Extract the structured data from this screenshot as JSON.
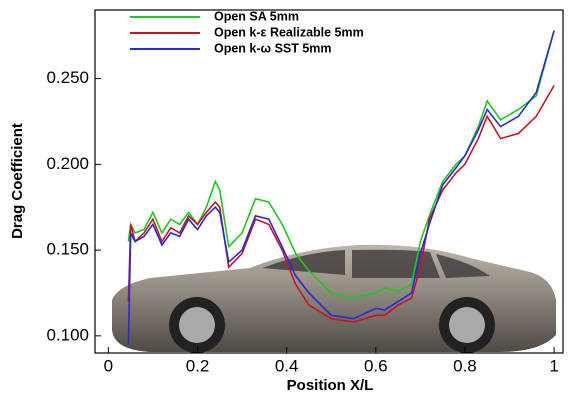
{
  "chart_data": {
    "type": "line",
    "xlabel": "Position X/L",
    "ylabel": "Drag Coefficient",
    "xlim": [
      -0.03,
      1.02
    ],
    "ylim": [
      0.09,
      0.29
    ],
    "xticks": [
      0,
      0.2,
      0.4,
      0.6,
      0.8,
      1
    ],
    "yticks": [
      {
        "value": 0.1,
        "label": "0.100"
      },
      {
        "value": 0.15,
        "label": "0.150"
      },
      {
        "value": 0.2,
        "label": "0.200"
      },
      {
        "value": 0.25,
        "label": "0.250"
      }
    ],
    "legend": "upper left",
    "x": [
      0.045,
      0.05,
      0.06,
      0.08,
      0.1,
      0.12,
      0.14,
      0.16,
      0.18,
      0.2,
      0.22,
      0.24,
      0.25,
      0.27,
      0.3,
      0.33,
      0.36,
      0.39,
      0.42,
      0.45,
      0.5,
      0.55,
      0.6,
      0.62,
      0.65,
      0.68,
      0.7,
      0.72,
      0.75,
      0.78,
      0.8,
      0.83,
      0.85,
      0.88,
      0.92,
      0.96,
      1.0
    ],
    "series": [
      {
        "name": "Open SA 5mm",
        "color": "#1fc81f",
        "values": [
          0.155,
          0.165,
          0.16,
          0.162,
          0.172,
          0.16,
          0.168,
          0.165,
          0.172,
          0.165,
          0.175,
          0.19,
          0.185,
          0.152,
          0.16,
          0.18,
          0.178,
          0.165,
          0.148,
          0.138,
          0.125,
          0.122,
          0.125,
          0.128,
          0.126,
          0.13,
          0.155,
          0.17,
          0.19,
          0.2,
          0.205,
          0.222,
          0.237,
          0.226,
          0.232,
          0.24,
          0.278
        ]
      },
      {
        "name": "Open k-ε Realizable 5mm",
        "color": "#c8141e",
        "values": [
          0.12,
          0.165,
          0.155,
          0.16,
          0.168,
          0.155,
          0.163,
          0.16,
          0.17,
          0.165,
          0.172,
          0.178,
          0.175,
          0.14,
          0.148,
          0.168,
          0.165,
          0.15,
          0.13,
          0.118,
          0.11,
          0.108,
          0.112,
          0.112,
          0.118,
          0.122,
          0.14,
          0.168,
          0.185,
          0.195,
          0.2,
          0.215,
          0.228,
          0.215,
          0.218,
          0.228,
          0.246
        ]
      },
      {
        "name": "Open k-ω SST 5mm",
        "color": "#2828dc",
        "values": [
          0.095,
          0.16,
          0.155,
          0.158,
          0.165,
          0.153,
          0.16,
          0.158,
          0.168,
          0.162,
          0.17,
          0.175,
          0.172,
          0.143,
          0.15,
          0.17,
          0.168,
          0.152,
          0.135,
          0.125,
          0.112,
          0.11,
          0.116,
          0.115,
          0.12,
          0.125,
          0.148,
          0.165,
          0.188,
          0.198,
          0.205,
          0.22,
          0.232,
          0.222,
          0.228,
          0.242,
          0.278
        ]
      }
    ]
  }
}
